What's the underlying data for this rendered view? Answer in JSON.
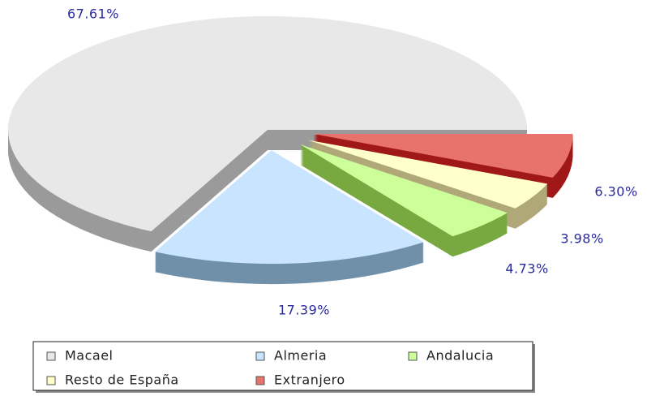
{
  "chart_data": {
    "type": "pie",
    "categories": [
      "Macael",
      "Almeria",
      "Andalucia",
      "Resto de España",
      "Extranjero"
    ],
    "values": [
      67.61,
      17.39,
      4.73,
      3.98,
      6.3
    ],
    "value_labels": [
      "67.61%",
      "17.39%",
      "4.73%",
      "3.98%",
      "6.30%"
    ],
    "colors": [
      "#e8e8e8",
      "#c9e4ff",
      "#ccff99",
      "#ffffcc",
      "#e8726c"
    ],
    "legend": "bottom"
  }
}
